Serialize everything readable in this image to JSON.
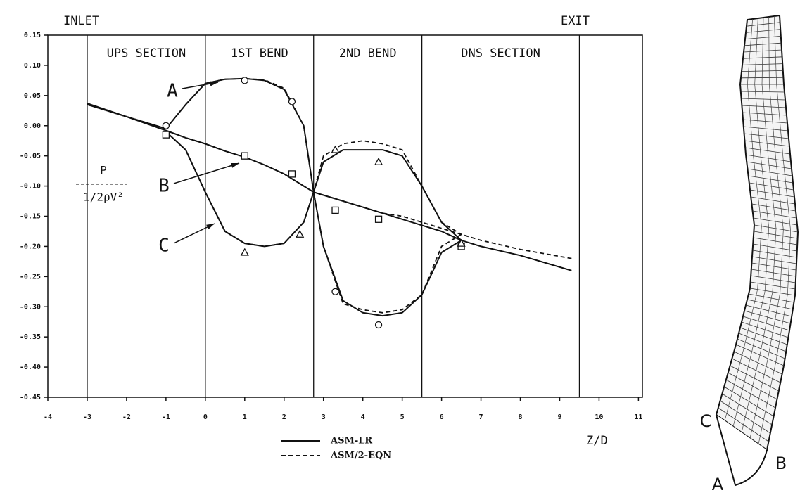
{
  "chart_data": {
    "type": "line",
    "inlet_label": "INLET",
    "exit_label": "EXIT",
    "x_label": "Z/D",
    "y_label_numerator": "P",
    "y_label_denominator": "1/2ρV²",
    "xlim": [
      -4,
      11.1
    ],
    "ylim": [
      -0.45,
      0.15
    ],
    "xticks": [
      -4,
      -3,
      -2,
      -1,
      0,
      1,
      2,
      3,
      4,
      5,
      6,
      7,
      8,
      9,
      10,
      11
    ],
    "yticks": [
      0.15,
      {
        "value": 0.1,
        "label": "0.10"
      },
      0.05,
      {
        "value": 0,
        "label": "0.00"
      },
      -0.05,
      {
        "value": -0.1,
        "label": "-0.10"
      },
      -0.15,
      {
        "value": -0.2,
        "label": "-0.20"
      },
      -0.25,
      {
        "value": -0.3,
        "label": "-0.30"
      },
      -0.35,
      {
        "value": -0.4,
        "label": "-0.40"
      },
      -0.45
    ],
    "dividers": [
      -3,
      0,
      2.75,
      5.5,
      9.5
    ],
    "sections": [
      "UPS SECTION",
      "1ST BEND",
      "2ND BEND",
      "DNS SECTION"
    ],
    "annotations": [
      "A",
      "B",
      "C"
    ],
    "x": [
      -3,
      -2,
      -1,
      -0.5,
      0,
      0.5,
      1,
      1.5,
      2,
      2.5,
      2.75,
      3,
      3.5,
      4,
      4.5,
      5,
      5.5,
      6,
      6.5,
      7,
      8,
      9.3
    ],
    "series": [
      {
        "name": "ASM-LR",
        "color": "#111",
        "dash": false,
        "curves": [
          {
            "values": [
              0.035,
              0.015,
              -0.005,
              0.035,
              0.07,
              0.077,
              0.078,
              0.075,
              0.06,
              0.0,
              -0.11,
              -0.2,
              -0.29,
              -0.31,
              -0.315,
              -0.31,
              -0.28,
              -0.21,
              -0.19,
              null,
              null,
              null
            ]
          },
          {
            "values": [
              0.037,
              0.015,
              -0.008,
              -0.02,
              -0.03,
              -0.042,
              -0.052,
              -0.065,
              -0.08,
              -0.1,
              -0.11,
              -0.115,
              -0.125,
              -0.135,
              -0.145,
              -0.155,
              -0.165,
              -0.175,
              -0.19,
              -0.2,
              -0.215,
              -0.24
            ]
          },
          {
            "values": [
              null,
              null,
              -0.01,
              -0.04,
              -0.11,
              -0.175,
              -0.195,
              -0.2,
              -0.195,
              -0.16,
              -0.11,
              -0.06,
              -0.04,
              -0.04,
              -0.04,
              -0.05,
              -0.1,
              -0.16,
              -0.19,
              null,
              null,
              null
            ]
          }
        ]
      },
      {
        "name": "ASM/2-EQN",
        "color": "#111",
        "dash": true,
        "curves": [
          {
            "values": [
              0.035,
              0.015,
              -0.005,
              0.035,
              0.07,
              0.077,
              0.078,
              0.076,
              0.062,
              0.0,
              -0.11,
              -0.2,
              -0.295,
              -0.305,
              -0.31,
              -0.305,
              -0.28,
              -0.2,
              -0.18,
              null,
              null,
              null
            ]
          },
          {
            "values": [
              0.037,
              0.015,
              -0.008,
              -0.02,
              -0.03,
              -0.042,
              -0.052,
              -0.065,
              -0.08,
              -0.1,
              -0.11,
              -0.115,
              -0.125,
              -0.135,
              -0.145,
              -0.15,
              -0.16,
              -0.17,
              -0.18,
              -0.19,
              -0.205,
              -0.22
            ]
          },
          {
            "values": [
              null,
              null,
              -0.01,
              -0.04,
              -0.11,
              -0.175,
              -0.195,
              -0.2,
              -0.195,
              -0.16,
              -0.11,
              -0.05,
              -0.03,
              -0.025,
              -0.03,
              -0.04,
              -0.1,
              -0.16,
              -0.18,
              null,
              null,
              null
            ]
          }
        ]
      }
    ],
    "markers": [
      {
        "shape": "circle",
        "x": [
          -1,
          1,
          2.2,
          3.3,
          4.4
        ],
        "y": [
          0.0,
          0.075,
          0.04,
          -0.275,
          -0.33
        ]
      },
      {
        "shape": "square",
        "x": [
          -1,
          1,
          2.2,
          3.3,
          4.4,
          6.5
        ],
        "y": [
          -0.015,
          -0.05,
          -0.08,
          -0.14,
          -0.155,
          -0.2
        ]
      },
      {
        "shape": "triangle",
        "x": [
          1,
          2.4,
          3.3,
          4.4,
          6.5
        ],
        "y": [
          -0.21,
          -0.18,
          -0.04,
          -0.06,
          -0.195
        ]
      }
    ]
  },
  "diagram": {
    "labels": [
      "C",
      "B",
      "A"
    ]
  }
}
